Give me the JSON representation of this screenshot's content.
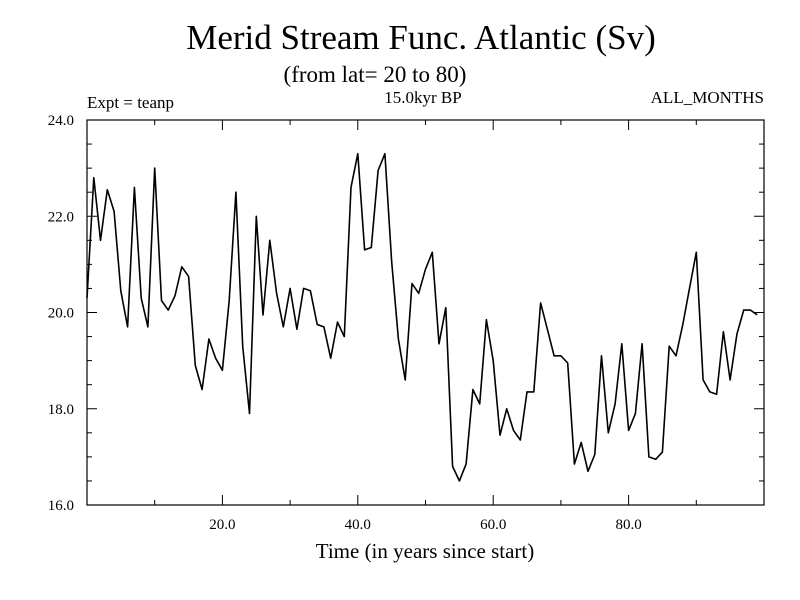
{
  "chart_data": {
    "type": "line",
    "title": "Merid Stream Func. Atlantic (Sv)",
    "subtitle": "(from lat= 20 to 80)",
    "left_label": "Expt = teanp",
    "center_label": "15.0kyr BP",
    "right_label": "ALL_MONTHS",
    "xlabel": "Time (in years since start)",
    "ylabel": "",
    "xlim": [
      0,
      100
    ],
    "ylim": [
      16,
      24
    ],
    "x_ticks": [
      20,
      40,
      60,
      80
    ],
    "x_tick_labels": [
      "20.0",
      "40.0",
      "60.0",
      "80.0"
    ],
    "y_ticks": [
      16,
      18,
      20,
      22,
      24
    ],
    "y_tick_labels": [
      "16.0",
      "18.0",
      "20.0",
      "22.0",
      "24.0"
    ],
    "grid": false,
    "series": [
      {
        "name": "Merid Stream Func.",
        "x": [
          0,
          1,
          2,
          3,
          4,
          5,
          6,
          7,
          8,
          9,
          10,
          11,
          12,
          13,
          14,
          15,
          16,
          17,
          18,
          19,
          20,
          21,
          22,
          23,
          24,
          25,
          26,
          27,
          28,
          29,
          30,
          31,
          32,
          33,
          34,
          35,
          36,
          37,
          38,
          39,
          40,
          41,
          42,
          43,
          44,
          45,
          46,
          47,
          48,
          49,
          50,
          51,
          52,
          53,
          54,
          55,
          56,
          57,
          58,
          59,
          60,
          61,
          62,
          63,
          64,
          65,
          66,
          67,
          68,
          69,
          70,
          71,
          72,
          73,
          74,
          75,
          76,
          77,
          78,
          79,
          80,
          81,
          82,
          83,
          84,
          85,
          86,
          87,
          88,
          89,
          90,
          91,
          92,
          93,
          94,
          95,
          96,
          97,
          98,
          99
        ],
        "values": [
          20.3,
          22.8,
          21.5,
          22.55,
          22.1,
          20.45,
          19.7,
          22.6,
          20.3,
          19.7,
          23.0,
          20.25,
          20.05,
          20.35,
          20.95,
          20.75,
          18.9,
          18.4,
          19.45,
          19.05,
          18.8,
          20.25,
          22.5,
          19.3,
          17.9,
          22.0,
          19.95,
          21.5,
          20.4,
          19.7,
          20.5,
          19.65,
          20.5,
          20.45,
          19.75,
          19.7,
          19.05,
          19.8,
          19.5,
          22.6,
          23.3,
          21.3,
          21.35,
          22.95,
          23.3,
          21.05,
          19.45,
          18.6,
          20.6,
          20.4,
          20.9,
          21.25,
          19.35,
          20.1,
          16.8,
          16.5,
          16.85,
          18.4,
          18.1,
          19.85,
          19.0,
          17.45,
          18.0,
          17.55,
          17.35,
          18.35,
          18.35,
          20.2,
          19.65,
          19.1,
          19.1,
          18.95,
          16.85,
          17.3,
          16.7,
          17.05,
          19.1,
          17.5,
          18.1,
          19.35,
          17.55,
          17.9,
          19.35,
          17.0,
          16.95,
          17.1,
          19.3,
          19.1,
          19.75,
          20.5,
          21.25,
          18.6,
          18.35,
          18.3,
          19.6,
          18.6,
          19.55,
          20.05,
          20.05,
          19.95
        ]
      }
    ]
  }
}
